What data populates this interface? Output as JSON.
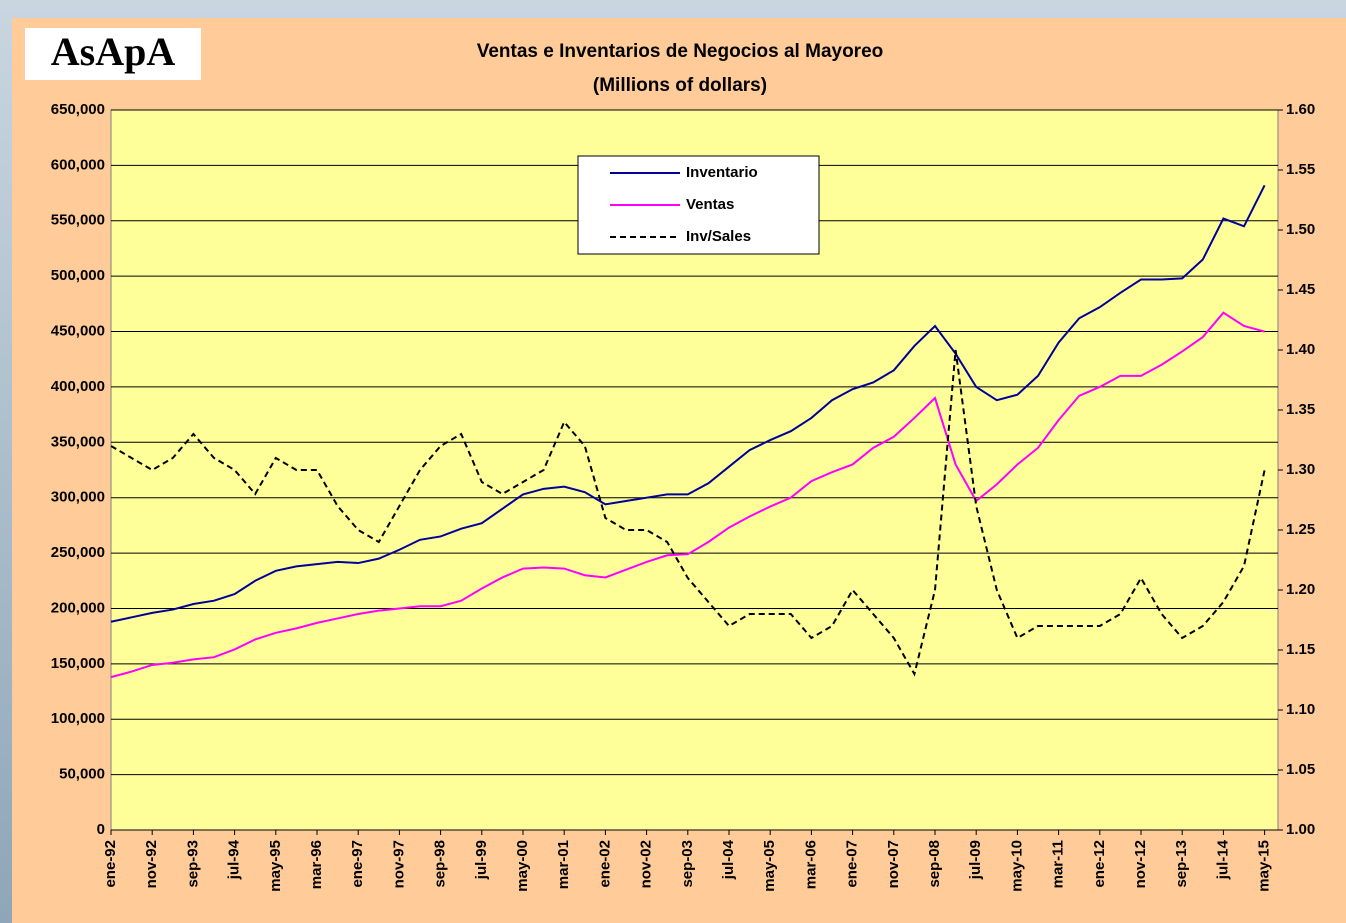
{
  "logo": "AsApA",
  "chart_data": {
    "type": "line",
    "title": "Ventas e Inventarios de Negocios al Mayoreo",
    "subtitle": "(Millions of dollars)",
    "categories": [
      "ene-92",
      null,
      "nov-92",
      null,
      "sep-93",
      null,
      "jul-94",
      null,
      "may-95",
      null,
      "mar-96",
      null,
      "ene-97",
      null,
      "nov-97",
      null,
      "sep-98",
      null,
      "jul-99",
      null,
      "may-00",
      null,
      "mar-01",
      null,
      "ene-02",
      null,
      "nov-02",
      null,
      "sep-03",
      null,
      "jul-04",
      null,
      "may-05",
      null,
      "mar-06",
      null,
      "ene-07",
      null,
      "nov-07",
      null,
      "sep-08",
      null,
      "jul-09",
      null,
      "may-10",
      null,
      "mar-11",
      null,
      "ene-12",
      null,
      "nov-12",
      null,
      "sep-13",
      null,
      "jul-14",
      null,
      "may-15"
    ],
    "series": [
      {
        "name": "Inventario",
        "color": "#000099",
        "dash": false,
        "values": [
          188000,
          192000,
          196000,
          199000,
          204000,
          207000,
          213000,
          225000,
          234000,
          238000,
          240000,
          242000,
          241000,
          245000,
          253000,
          262000,
          265000,
          272000,
          277000,
          290000,
          303000,
          308000,
          310000,
          305000,
          294000,
          297000,
          300000,
          303000,
          303000,
          313000,
          328000,
          343000,
          352000,
          360000,
          372000,
          388000,
          398000,
          404000,
          415000,
          437000,
          455000,
          430000,
          400000,
          388000,
          393000,
          410000,
          440000,
          462000,
          472000,
          485000,
          497000,
          497000,
          498000,
          515000,
          552000,
          545000,
          582000
        ]
      },
      {
        "name": "Ventas",
        "color": "#ff00ff",
        "dash": false,
        "values": [
          138000,
          143000,
          149000,
          151000,
          154000,
          156000,
          163000,
          172000,
          178000,
          182000,
          187000,
          191000,
          195000,
          198000,
          200000,
          202000,
          202000,
          207000,
          218000,
          228000,
          236000,
          237000,
          236000,
          230000,
          228000,
          235000,
          242000,
          248000,
          249000,
          260000,
          273000,
          283000,
          292000,
          300000,
          315000,
          323000,
          330000,
          345000,
          355000,
          372000,
          390000,
          330000,
          297000,
          312000,
          330000,
          345000,
          370000,
          392000,
          400000,
          410000,
          410000,
          420000,
          432000,
          445000,
          467000,
          455000,
          450000
        ]
      },
      {
        "name": "Inv/Sales",
        "color": "#000000",
        "dash": true,
        "axis": "y2",
        "values": [
          1.32,
          1.31,
          1.3,
          1.31,
          1.33,
          1.31,
          1.3,
          1.28,
          1.31,
          1.3,
          1.3,
          1.27,
          1.25,
          1.24,
          1.27,
          1.3,
          1.32,
          1.33,
          1.29,
          1.28,
          1.29,
          1.3,
          1.34,
          1.32,
          1.26,
          1.25,
          1.25,
          1.24,
          1.21,
          1.19,
          1.17,
          1.18,
          1.18,
          1.18,
          1.16,
          1.17,
          1.2,
          1.18,
          1.16,
          1.13,
          1.2,
          1.4,
          1.27,
          1.2,
          1.16,
          1.17,
          1.17,
          1.17,
          1.17,
          1.18,
          1.21,
          1.18,
          1.16,
          1.17,
          1.19,
          1.22,
          1.3
        ]
      }
    ],
    "ylim": [
      0,
      650000
    ],
    "yticks": [
      {
        "value": 0,
        "label": "0"
      },
      {
        "value": 50000,
        "label": "50,000"
      },
      {
        "value": 100000,
        "label": "100,000"
      },
      {
        "value": 150000,
        "label": "150,000"
      },
      {
        "value": 200000,
        "label": "200,000"
      },
      {
        "value": 250000,
        "label": "250,000"
      },
      {
        "value": 300000,
        "label": "300,000"
      },
      {
        "value": 350000,
        "label": "350,000"
      },
      {
        "value": 400000,
        "label": "400,000"
      },
      {
        "value": 450000,
        "label": "450,000"
      },
      {
        "value": 500000,
        "label": "500,000"
      },
      {
        "value": 550000,
        "label": "550,000"
      },
      {
        "value": 600000,
        "label": "600,000"
      },
      {
        "value": 650000,
        "label": "650,000"
      }
    ],
    "y2lim": [
      1.0,
      1.6
    ],
    "y2ticks": [
      {
        "value": 1.0,
        "label": "1.00"
      },
      1.05,
      {
        "value": 1.1,
        "label": "1.10"
      },
      1.15,
      {
        "value": 1.2,
        "label": "1.20"
      },
      1.25,
      {
        "value": 1.3,
        "label": "1.30"
      },
      1.35,
      {
        "value": 1.4,
        "label": "1.40"
      },
      1.45,
      {
        "value": 1.5,
        "label": "1.50"
      },
      1.55,
      {
        "value": 1.6,
        "label": "1.60"
      }
    ],
    "grid": true,
    "legend": "top"
  }
}
